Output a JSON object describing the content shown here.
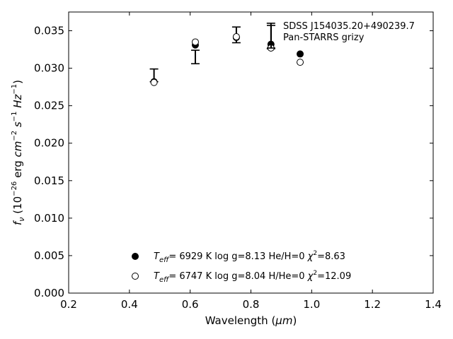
{
  "chart_data": {
    "type": "scatter",
    "xlabel_main": "Wavelength (",
    "xlabel_unit": "μm",
    "xlabel_end": ")",
    "ylabel_var": "f",
    "ylabel_sub": "ν",
    "ylabel_open": " (10",
    "ylabel_exp1": "−26",
    "ylabel_mid": " erg ",
    "ylabel_cm": "cm",
    "ylabel_exp2": "−2",
    "ylabel_s": " s",
    "ylabel_exp3": "−1",
    "ylabel_hz": " Hz",
    "ylabel_exp4": "−1",
    "ylabel_close": ")",
    "xlim": [
      0.2,
      1.4
    ],
    "ylim": [
      0.0,
      0.0375
    ],
    "xticks": [
      "0.2",
      "0.4",
      "0.6",
      "0.8",
      "1.0",
      "1.2",
      "1.4"
    ],
    "xtick_values": [
      0.2,
      0.4,
      0.6,
      0.8,
      1.0,
      1.2,
      1.4
    ],
    "yticks": [
      "0.000",
      "0.005",
      "0.010",
      "0.015",
      "0.020",
      "0.025",
      "0.030",
      "0.035"
    ],
    "ytick_values": [
      0.0,
      0.005,
      0.01,
      0.015,
      0.02,
      0.025,
      0.03,
      0.035
    ],
    "observed": [
      {
        "x": 0.481,
        "y": 0.02825,
        "ylow": 0.0282,
        "yhigh": 0.0299
      },
      {
        "x": 0.617,
        "y": 0.0315,
        "ylow": 0.0306,
        "yhigh": 0.0324
      },
      {
        "x": 0.752,
        "y": 0.03445,
        "ylow": 0.0334,
        "yhigh": 0.0355
      },
      {
        "x": 0.866,
        "y": 0.033,
        "ylow": 0.0326,
        "yhigh": 0.036
      }
    ],
    "series": [
      {
        "marker": "filled",
        "x": [
          0.481,
          0.617,
          0.752,
          0.866,
          0.962
        ],
        "y": [
          0.0282,
          0.0331,
          0.0341,
          0.0332,
          0.0319
        ]
      },
      {
        "marker": "open",
        "x": [
          0.481,
          0.617,
          0.752,
          0.866,
          0.962
        ],
        "y": [
          0.0281,
          0.0335,
          0.0342,
          0.0327,
          0.0308
        ]
      }
    ],
    "annotation": [
      "SDSS J154035.20+490239.7",
      "Pan-STARRS grizy"
    ],
    "legend": [
      {
        "marker": "filled",
        "teff": "6929 K",
        "logg": "log g=8.13",
        "comp": "He/H=0",
        "chi": "=8.63"
      },
      {
        "marker": "open",
        "teff": "6747 K",
        "logg": "log g=8.04",
        "comp": "H/He=0",
        "chi": "=12.09"
      }
    ],
    "legend_placement": "lower-center",
    "grid": false
  }
}
